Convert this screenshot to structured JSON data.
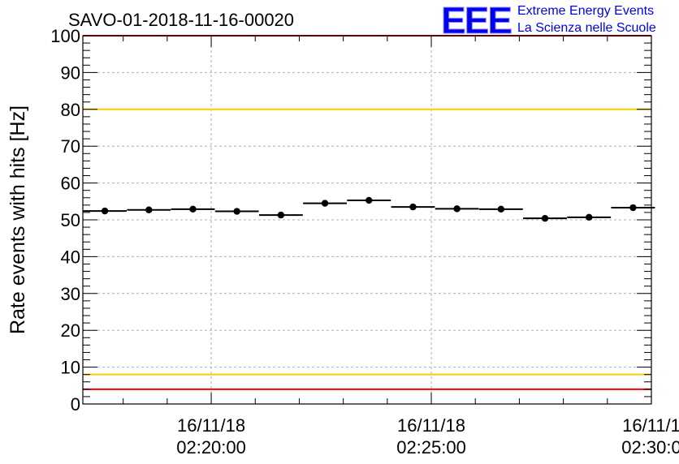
{
  "chart_data": {
    "type": "scatter",
    "title": "SAVO-01-2018-11-16-00020",
    "xlabel": "",
    "ylabel": "Rate events with hits [Hz]",
    "ylim": [
      0,
      100
    ],
    "yticks": [
      "0",
      "10",
      "20",
      "30",
      "40",
      "50",
      "60",
      "70",
      "80",
      "90",
      "100"
    ],
    "xticks": [
      {
        "date": "16/11/18",
        "time": "02:20:00"
      },
      {
        "date": "16/11/18",
        "time": "02:25:00"
      },
      {
        "date": "16/11/1",
        "time": "02:30:0"
      }
    ],
    "x_start": "02:17:05",
    "x_end": "02:30:00",
    "grid": true,
    "reference_lines": [
      {
        "value": 100,
        "color": "#ff0000"
      },
      {
        "value": 80,
        "color": "#ffcc00"
      },
      {
        "value": 8,
        "color": "#ffcc00"
      },
      {
        "value": 4,
        "color": "#ff0000"
      }
    ],
    "series": [
      {
        "x": [
          "02:17:35",
          "02:18:35",
          "02:19:35",
          "02:20:35",
          "02:21:35",
          "02:22:35",
          "02:23:35",
          "02:24:35",
          "02:25:35",
          "02:26:35",
          "02:27:35",
          "02:28:35",
          "02:29:35"
        ],
        "values": [
          52.4,
          52.7,
          52.9,
          52.3,
          51.3,
          54.5,
          55.3,
          53.5,
          53.0,
          52.9,
          50.4,
          50.7,
          53.3
        ]
      }
    ]
  },
  "logo": {
    "text": "EEE",
    "line1": "Extreme Energy Events",
    "line2": "La Scienza nelle Scuole",
    "color": "#0000ee"
  }
}
